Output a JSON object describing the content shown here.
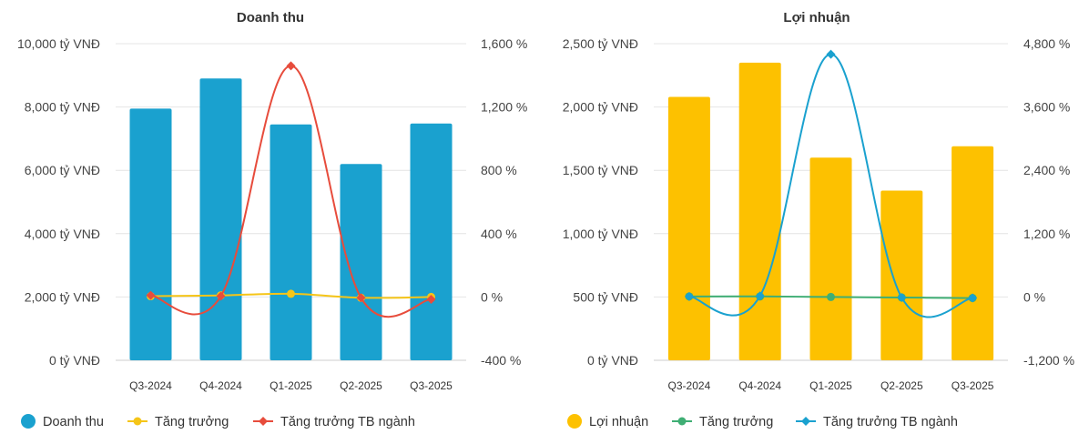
{
  "chart_data": [
    {
      "type": "bar",
      "title": "Doanh thu",
      "categories": [
        "Q3-2024",
        "Q4-2024",
        "Q1-2025",
        "Q2-2025",
        "Q3-2025"
      ],
      "left_axis": {
        "ticks": [
          "10,000 tỷ VNĐ",
          "8,000 tỷ VNĐ",
          "6,000 tỷ VNĐ",
          "4,000 tỷ VNĐ",
          "2,000 tỷ VNĐ",
          "0 tỷ VNĐ"
        ],
        "range": [
          0,
          10000
        ]
      },
      "right_axis": {
        "ticks": [
          "1,600 %",
          "1,200 %",
          "800 %",
          "400 %",
          "0 %",
          "-400 %"
        ],
        "range": [
          -400,
          1600
        ]
      },
      "series": [
        {
          "name": "Doanh thu",
          "kind": "bar",
          "axis": "left",
          "values": [
            7950,
            8900,
            7450,
            6200,
            7480
          ],
          "color": "#1aa1cf"
        },
        {
          "name": "Tăng trưởng",
          "kind": "line",
          "axis": "right",
          "values": [
            5,
            10,
            20,
            -5,
            0
          ],
          "color": "#f5c518",
          "marker": "circle"
        },
        {
          "name": "Tăng trưởng TB ngành",
          "kind": "line",
          "axis": "right",
          "values": [
            10,
            5,
            1460,
            -5,
            -15
          ],
          "color": "#e74c3c",
          "marker": "diamond"
        }
      ]
    },
    {
      "type": "bar",
      "title": "Lợi nhuận",
      "categories": [
        "Q3-2024",
        "Q4-2024",
        "Q1-2025",
        "Q2-2025",
        "Q3-2025"
      ],
      "left_axis": {
        "ticks": [
          "2,500 tỷ VNĐ",
          "2,000 tỷ VNĐ",
          "1,500 tỷ VNĐ",
          "1,000 tỷ VNĐ",
          "500 tỷ VNĐ",
          "0 tỷ VNĐ"
        ],
        "range": [
          0,
          2500
        ]
      },
      "right_axis": {
        "ticks": [
          "4,800 %",
          "3,600 %",
          "2,400 %",
          "1,200 %",
          "0 %",
          "-1,200 %"
        ],
        "range": [
          -1200,
          4800
        ]
      },
      "series": [
        {
          "name": "Lợi nhuận",
          "kind": "bar",
          "axis": "left",
          "values": [
            2080,
            2350,
            1600,
            1340,
            1690
          ],
          "color": "#fdc100"
        },
        {
          "name": "Tăng trưởng",
          "kind": "line",
          "axis": "right",
          "values": [
            10,
            10,
            0,
            -10,
            -20
          ],
          "color": "#3fae74",
          "marker": "circle"
        },
        {
          "name": "Tăng trưởng TB ngành",
          "kind": "line",
          "axis": "right",
          "values": [
            10,
            20,
            4600,
            -10,
            -20
          ],
          "color": "#1aa1cf",
          "marker": "diamond"
        }
      ]
    }
  ]
}
